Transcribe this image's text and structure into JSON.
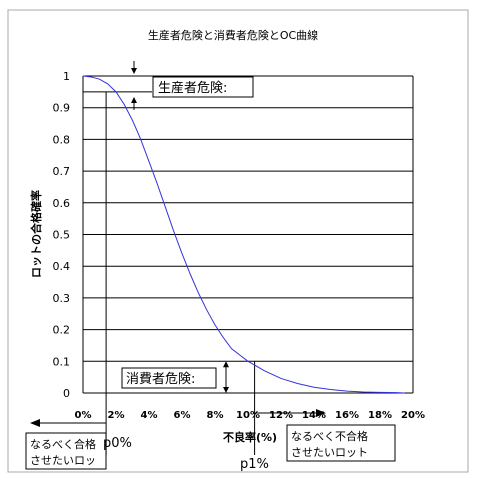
{
  "chart_data": {
    "type": "line",
    "title": "生産者危険と消費者危険とOC曲線",
    "xlabel": "不良率(%)",
    "ylabel": "ロットの合格確率",
    "xlim": [
      0,
      20
    ],
    "ylim": [
      0,
      1
    ],
    "x_ticks": [
      "0%",
      "2%",
      "4%",
      "6%",
      "8%",
      "10%",
      "12%",
      "14%",
      "16%",
      "18%",
      "20%"
    ],
    "y_ticks": [
      "0",
      "0.1",
      "0.2",
      "0.3",
      "0.4",
      "0.5",
      "0.6",
      "0.7",
      "0.8",
      "0.9",
      "1"
    ],
    "grid": "horizontal",
    "series": [
      {
        "color": "#3333dd",
        "x": [
          0,
          0.5,
          1,
          1.5,
          2,
          2.5,
          3,
          3.5,
          4,
          4.5,
          5,
          5.5,
          6,
          6.5,
          7,
          7.5,
          8,
          8.5,
          9,
          9.5,
          10,
          11,
          12,
          13,
          14,
          15,
          16,
          17,
          18,
          19,
          19.5
        ],
        "y": [
          1.0,
          0.997,
          0.99,
          0.975,
          0.95,
          0.91,
          0.86,
          0.8,
          0.73,
          0.66,
          0.585,
          0.51,
          0.44,
          0.375,
          0.315,
          0.262,
          0.215,
          0.175,
          0.14,
          0.12,
          0.1,
          0.07,
          0.046,
          0.03,
          0.018,
          0.011,
          0.006,
          0.003,
          0.002,
          0.001,
          0.0
        ]
      }
    ],
    "annotations": {
      "producer_risk": "生産者危険:",
      "consumer_risk": "消費者危険:",
      "p0": "p0%",
      "p1": "p1%",
      "left_note_line1": "なるべく合格",
      "left_note_line2": "させたいロッ",
      "right_note_line1": "なるべく不合格",
      "right_note_line2": "させたいロット",
      "p0_value": 1.4,
      "p1_value": 10.4,
      "producer_level": 0.95,
      "consumer_level": 0.1
    }
  }
}
